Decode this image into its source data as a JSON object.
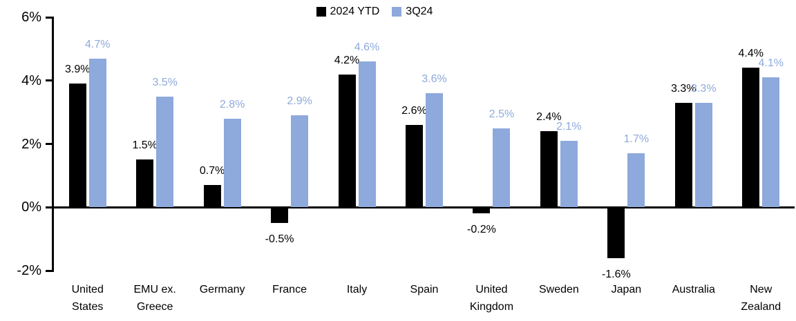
{
  "chart_data": {
    "type": "bar",
    "title": "",
    "legend_position": "top-center",
    "grid": false,
    "ylim": [
      -2,
      6
    ],
    "yticks": [
      6,
      4,
      2,
      0,
      -2
    ],
    "ytick_labels": [
      "6%",
      "4%",
      "2%",
      "0%",
      "-2%"
    ],
    "categories": [
      "United\nStates",
      "EMU ex.\nGreece",
      "Germany",
      "France",
      "Italy",
      "Spain",
      "United\nKingdom",
      "Sweden",
      "Japan",
      "Australia",
      "New\nZealand"
    ],
    "series": [
      {
        "name": "2024 YTD",
        "color": "#000000",
        "values": [
          3.9,
          1.5,
          0.7,
          -0.5,
          4.2,
          2.6,
          -0.2,
          2.4,
          -1.6,
          3.3,
          4.4
        ],
        "labels": [
          "3.9%",
          "1.5%",
          "0.7%",
          "-0.5%",
          "4.2%",
          "2.6%",
          "-0.2%",
          "2.4%",
          "-1.6%",
          "3.3%",
          "4.4%"
        ]
      },
      {
        "name": "3Q24",
        "color": "#8EA9DB",
        "values": [
          4.7,
          3.5,
          2.8,
          2.9,
          4.6,
          3.6,
          2.5,
          2.1,
          1.7,
          3.3,
          4.1
        ],
        "labels": [
          "4.7%",
          "3.5%",
          "2.8%",
          "2.9%",
          "4.6%",
          "3.6%",
          "2.5%",
          "2.1%",
          "1.7%",
          "3.3%",
          "4.1%"
        ]
      }
    ]
  }
}
